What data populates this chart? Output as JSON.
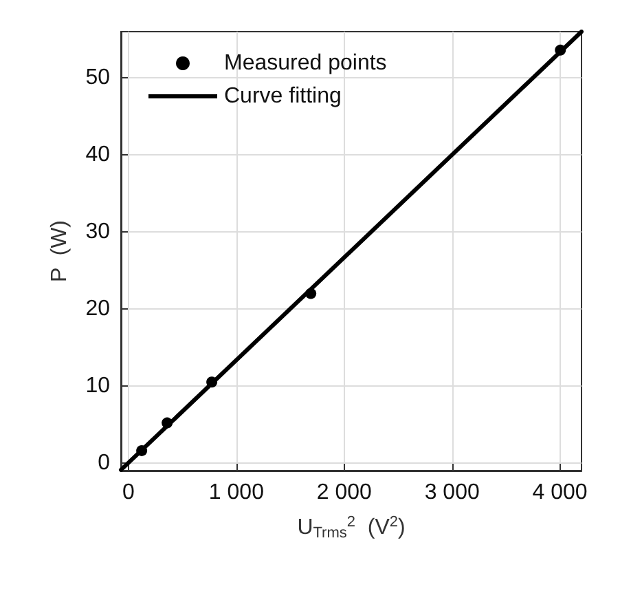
{
  "chart_data": {
    "type": "scatter",
    "xlabel": "U$_{Trms}$$^{2}$  (V$^{2}$)",
    "ylabel": "P  (W)",
    "series": [
      {
        "name": "Measured points",
        "color": "#000000",
        "marker": "circle",
        "x": [
          122,
          358,
          772,
          1690,
          4004
        ],
        "values": [
          1.6,
          5.2,
          10.5,
          22.0,
          53.6
        ]
      },
      {
        "name": "Curve fitting",
        "type": "line",
        "color": "#000000",
        "marker": "none",
        "line_style": "solid",
        "x": [
          -70,
          4200
        ],
        "values": [
          -0.9,
          56
        ]
      }
    ],
    "xlim": [
      -70,
      4200
    ],
    "ylim": [
      -1,
      56
    ],
    "xticks": [
      0,
      {
        "value": 1000,
        "label": "1 000"
      },
      {
        "value": 2000,
        "label": "2 000"
      },
      {
        "value": 3000,
        "label": "3 000"
      },
      {
        "value": 4000,
        "label": "4 000"
      }
    ],
    "yticks": [
      0,
      10,
      20,
      30,
      40,
      50
    ],
    "grid": true,
    "legend": "top left"
  }
}
